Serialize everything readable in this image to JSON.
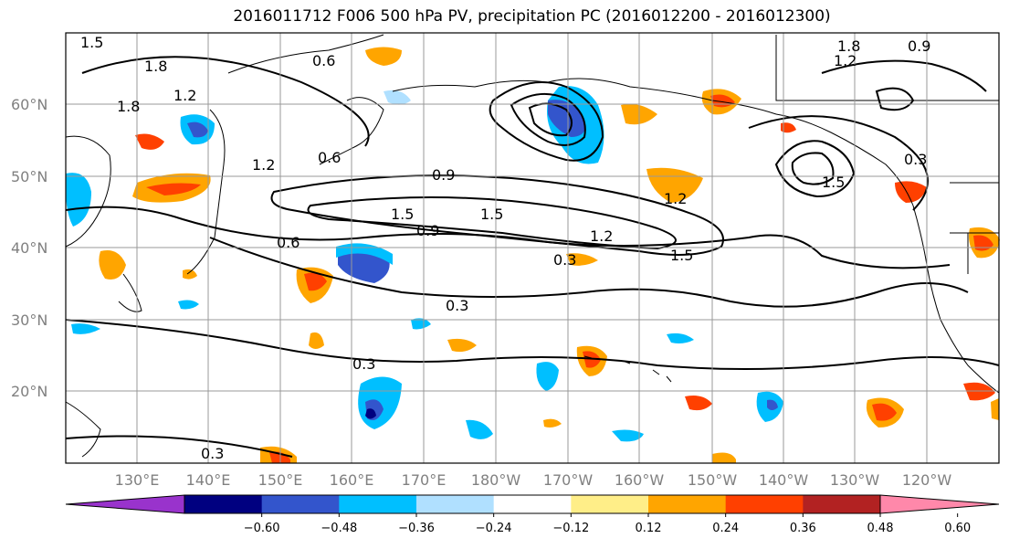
{
  "title": "2016011712 F006 500 hPa PV, precipitation PC (2016012200 - 2016012300)",
  "lat_labels": [
    "60°N",
    "50°N",
    "40°N",
    "30°N",
    "20°N"
  ],
  "lon_labels": [
    "130°E",
    "140°E",
    "150°E",
    "160°E",
    "170°E",
    "180°W",
    "170°W",
    "160°W",
    "150°W",
    "140°W",
    "130°W",
    "120°W"
  ],
  "colorbar": {
    "colors": [
      "#9933cc",
      "#000080",
      "#3355cc",
      "#00bfff",
      "#b0e0ff",
      "#ffffff",
      "#ffee88",
      "#ffa500",
      "#ff4000",
      "#b22222",
      "#ff88aa"
    ],
    "tick_labels": [
      "−0.60",
      "−0.48",
      "−0.36",
      "−0.24",
      "−0.12",
      "0.12",
      "0.24",
      "0.36",
      "0.48",
      "0.60"
    ]
  },
  "contour_labels": [
    "1.5",
    "1.8",
    "0.6",
    "1.2",
    "1.8",
    "1.2",
    "0.6",
    "0.9",
    "1.5",
    "0.9",
    "1.5",
    "0.6",
    "1.2",
    "0.3",
    "1.5",
    "0.3",
    "0.3",
    "0.3",
    "1.2",
    "1.5",
    "0.3",
    "1.8",
    "0.9",
    "1.2"
  ]
}
